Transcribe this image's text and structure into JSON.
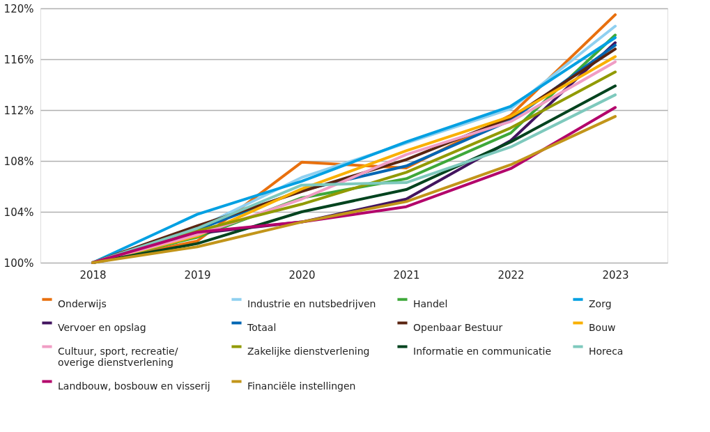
{
  "chart_data": {
    "type": "line",
    "categories": [
      "2018",
      "2019",
      "2020",
      "2021",
      "2022",
      "2023"
    ],
    "ylim": [
      100,
      120
    ],
    "yticks": [
      {
        "value": 100,
        "label": "100%"
      },
      {
        "value": 104,
        "label": "104%"
      },
      {
        "value": 108,
        "label": "108%"
      },
      {
        "value": 112,
        "label": "112%"
      },
      {
        "value": 116,
        "label": "116%"
      },
      {
        "value": 120,
        "label": "120%"
      }
    ],
    "grid": "y",
    "legend": "bottom",
    "marker": "none",
    "line_style": "solid",
    "series": [
      {
        "name": "Onderwijs",
        "color": "#e8700e",
        "values": [
          100,
          101.7,
          107.9,
          107.45,
          111.6,
          119.5
        ]
      },
      {
        "name": "Industrie en nutsbedrijven",
        "color": "#8fd0f0",
        "values": [
          100,
          102.7,
          106.7,
          109.4,
          112.1,
          118.6
        ]
      },
      {
        "name": "Handel",
        "color": "#3ea83a",
        "values": [
          100,
          102.0,
          105.1,
          106.6,
          110.2,
          117.9
        ]
      },
      {
        "name": "Zorg",
        "color": "#00a0e2",
        "values": [
          100,
          103.8,
          106.4,
          109.5,
          112.3,
          117.7
        ]
      },
      {
        "name": "Vervoer en opslag",
        "color": "#42145f",
        "values": [
          100,
          102.3,
          103.2,
          105.0,
          109.6,
          117.3
        ]
      },
      {
        "name": "Totaal",
        "color": "#0066b3",
        "values": [
          100,
          102.6,
          105.7,
          107.6,
          111.2,
          117.1
        ]
      },
      {
        "name": "Openbaar Bestuur",
        "color": "#5a2411",
        "values": [
          100,
          102.9,
          105.6,
          108.1,
          111.4,
          116.8
        ]
      },
      {
        "name": "Bouw",
        "color": "#f9b000",
        "values": [
          100,
          102.1,
          105.8,
          108.8,
          111.5,
          116.2
        ]
      },
      {
        "name": "Cultuur, sport, recreatie/ overige dienstverlening",
        "color": "#f09dc4",
        "values": [
          100,
          102.2,
          105.0,
          108.5,
          111.1,
          115.8
        ]
      },
      {
        "name": "Zakelijke dienstverlening",
        "color": "#919a00",
        "values": [
          100,
          102.5,
          104.6,
          107.1,
          110.6,
          115.0
        ]
      },
      {
        "name": "Informatie en communicatie",
        "color": "#00431e",
        "values": [
          100,
          101.5,
          104.0,
          105.75,
          109.5,
          113.9
        ]
      },
      {
        "name": "Horeca",
        "color": "#7ec9bd",
        "values": [
          100,
          102.7,
          106.1,
          106.3,
          109.1,
          113.2
        ]
      },
      {
        "name": "Landbouw, bosbouw en visserij",
        "color": "#b3036b",
        "values": [
          100,
          102.4,
          103.2,
          104.4,
          107.4,
          112.2
        ]
      },
      {
        "name": "Financiële instellingen",
        "color": "#c2951a",
        "values": [
          100,
          101.25,
          103.2,
          104.8,
          107.7,
          111.5
        ]
      }
    ]
  }
}
